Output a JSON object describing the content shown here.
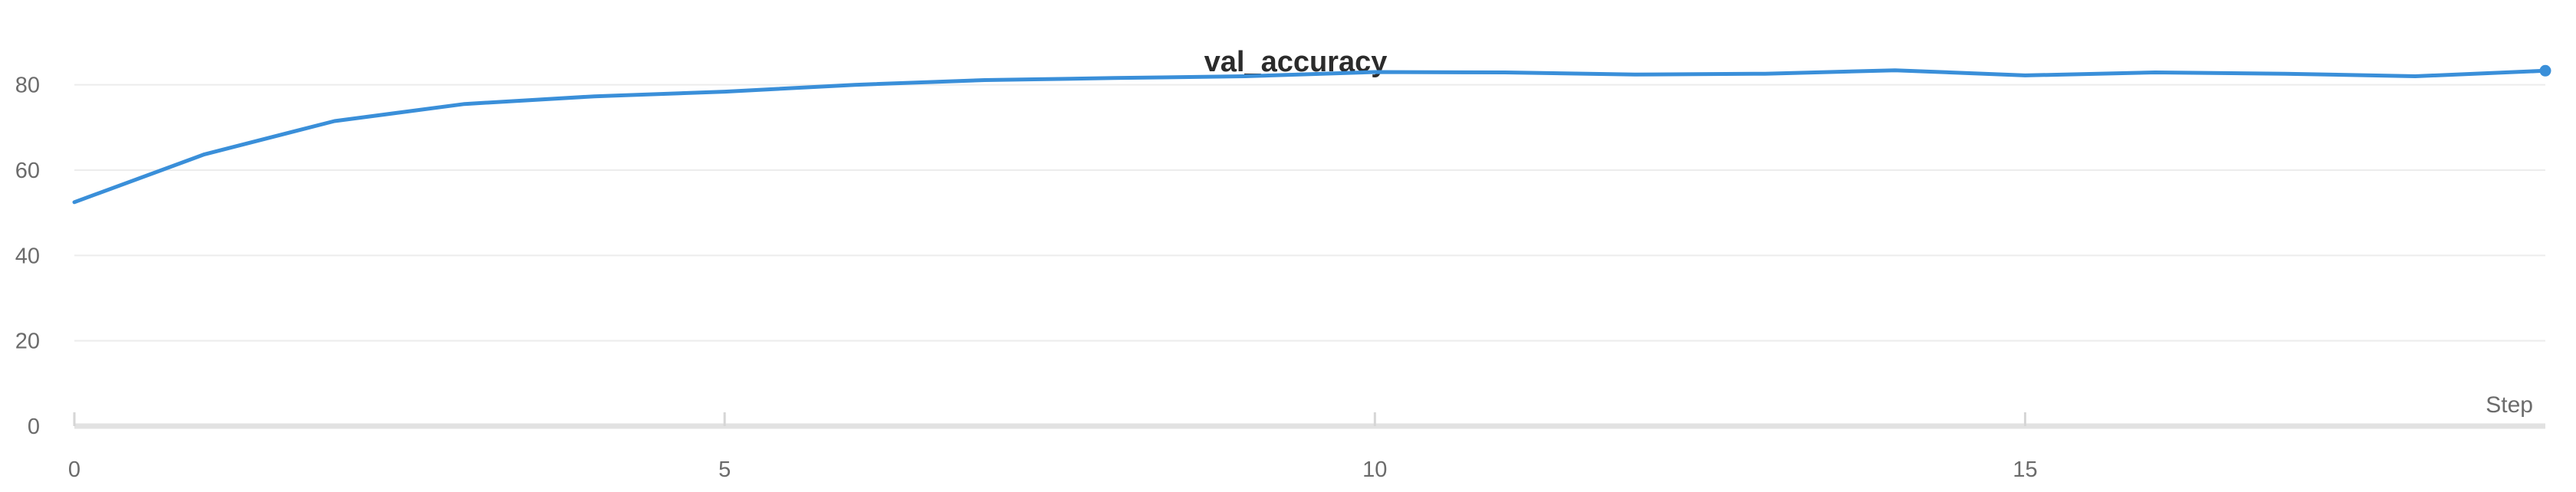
{
  "chart_data": {
    "type": "line",
    "title": "val_accuracy",
    "xlabel": "Step",
    "ylabel": "",
    "xlim": [
      0,
      19
    ],
    "ylim": [
      0,
      90
    ],
    "x_ticks": [
      0,
      5,
      10,
      15
    ],
    "y_ticks": [
      0,
      20,
      40,
      60,
      80
    ],
    "grid": true,
    "legend": "none",
    "series": [
      {
        "color": "#3a8fd9",
        "x": [
          0,
          1,
          2,
          3,
          4,
          5,
          6,
          7,
          8,
          9,
          10,
          11,
          12,
          13,
          14,
          15,
          16,
          17,
          18,
          19
        ],
        "values": [
          52.5,
          63.7,
          71.5,
          75.5,
          77.3,
          78.4,
          80.0,
          81.1,
          81.6,
          82.0,
          83.0,
          82.9,
          82.4,
          82.6,
          83.4,
          82.2,
          82.9,
          82.6,
          82.0,
          83.3
        ]
      }
    ]
  }
}
